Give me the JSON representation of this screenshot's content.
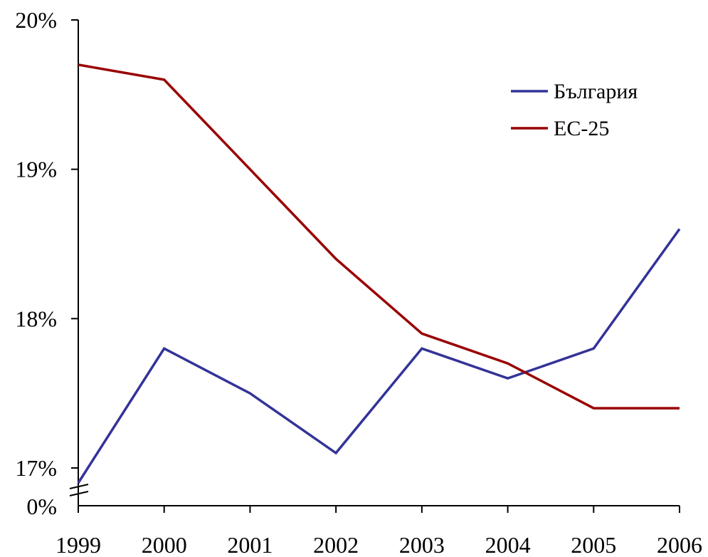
{
  "chart_data": {
    "type": "line",
    "title": "",
    "xlabel": "",
    "ylabel": "",
    "x": [
      1999,
      2000,
      2001,
      2002,
      2003,
      2004,
      2005,
      2006
    ],
    "x_tick_labels": [
      "1999",
      "2000",
      "2001",
      "2002",
      "2003",
      "2004",
      "2005",
      "2006"
    ],
    "ylim": [
      17,
      20
    ],
    "y_axis_break": true,
    "y_ticks": [
      17,
      18,
      19,
      20
    ],
    "y_tick_labels": [
      "17%",
      "18%",
      "19%",
      "20%"
    ],
    "y_break_label": "0%",
    "grid": false,
    "legend_position": "top-right",
    "series": [
      {
        "name": "България",
        "color": "#333399",
        "values": [
          16.9,
          17.8,
          17.5,
          17.1,
          17.8,
          17.6,
          17.8,
          18.6
        ]
      },
      {
        "name": "ЕС-25",
        "color": "#990000",
        "values": [
          19.7,
          19.6,
          19.0,
          18.4,
          17.9,
          17.7,
          17.4,
          17.4
        ]
      }
    ]
  }
}
